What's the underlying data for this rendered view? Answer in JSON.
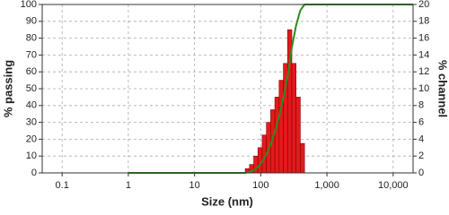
{
  "chart_data": {
    "type": "histogram",
    "x_label": "Size (nm)",
    "y_label": "% passing",
    "y2_label": "% channel",
    "xscale": "log",
    "xlim": [
      0.05,
      20000
    ],
    "xticks": [
      0.1,
      1,
      10,
      100,
      {
        "value": 1000,
        "label": "1,000"
      },
      {
        "value": 10000,
        "label": "10,000"
      }
    ],
    "ylim": [
      0,
      100
    ],
    "yticks": [
      0,
      10,
      20,
      30,
      40,
      50,
      60,
      70,
      80,
      90,
      100
    ],
    "y2lim": [
      0,
      20
    ],
    "y2ticks": [
      0,
      2,
      4,
      6,
      8,
      10,
      12,
      14,
      16,
      18,
      20
    ],
    "grid": true,
    "histogram": {
      "axis": "y2",
      "color": "#e31a1c",
      "bins": [
        58.3,
        67.6,
        78.3,
        90.7,
        105.1,
        121.8,
        141.1,
        163.5,
        189.5,
        219.6,
        254.5,
        294.9,
        341.7,
        396.0,
        458.9
      ],
      "values": [
        0.5,
        1,
        2,
        3,
        4.5,
        6,
        7.5,
        9,
        11,
        13,
        17,
        13,
        9,
        3.5
      ]
    },
    "line": {
      "axis": "y",
      "color": "#2e8b1e",
      "x": [
        1,
        58.3,
        67.6,
        78.3,
        90.7,
        105.1,
        121.8,
        141.1,
        163.5,
        189.5,
        219.6,
        254.5,
        294.9,
        341.7,
        396.0,
        458.9,
        20000
      ],
      "values": [
        0,
        0,
        0.5,
        1.5,
        3.5,
        6.5,
        11,
        17,
        24.5,
        33.5,
        44.5,
        57.5,
        74.5,
        87.5,
        96.5,
        100,
        100
      ]
    }
  }
}
